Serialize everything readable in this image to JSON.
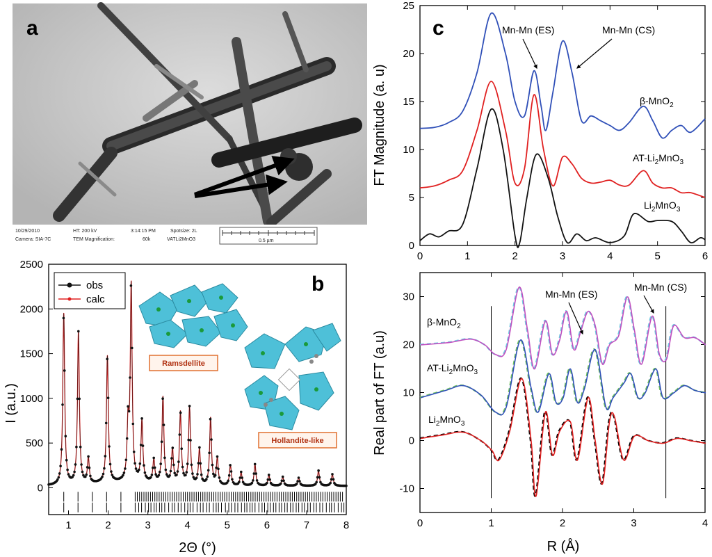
{
  "panel_a": {
    "label": "a",
    "info": {
      "date": "10/29/2010",
      "camera": "Camera: SIA-7C",
      "ht": "HT: 200 kV",
      "mode": "TEM Magnification:",
      "time": "3:14:15 PM",
      "mag": "60k",
      "spot": "Spotsize: 2L",
      "file": "VATLi2MnO3",
      "scale": "0.5 µm"
    }
  },
  "chart_data": [
    {
      "id": "b",
      "type": "line",
      "panel_label": "b",
      "xlabel": "2Θ (°)",
      "ylabel": "I (a.u.)",
      "xlim": [
        0.5,
        8
      ],
      "ylim": [
        -300,
        2500
      ],
      "xticks": [
        "1",
        "2",
        "3",
        "4",
        "5",
        "6",
        "7",
        "8"
      ],
      "yticks": [
        "0",
        "500",
        "1000",
        "1500",
        "2000",
        "2500"
      ],
      "legend": [
        "obs",
        "calc"
      ],
      "colors": {
        "obs": "#111111",
        "calc": "#e02020"
      },
      "baseline": 20,
      "peaks": [
        [
          0.88,
          1920
        ],
        [
          1.25,
          1700
        ],
        [
          1.5,
          280
        ],
        [
          1.98,
          1420
        ],
        [
          2.5,
          600
        ],
        [
          2.58,
          2180
        ],
        [
          2.85,
          680
        ],
        [
          3.15,
          250
        ],
        [
          3.38,
          960
        ],
        [
          3.62,
          380
        ],
        [
          3.82,
          800
        ],
        [
          4.05,
          860
        ],
        [
          4.3,
          400
        ],
        [
          4.58,
          750
        ],
        [
          4.75,
          300
        ],
        [
          5.08,
          230
        ],
        [
          5.35,
          150
        ],
        [
          5.7,
          240
        ],
        [
          6.05,
          120
        ],
        [
          6.4,
          100
        ],
        [
          6.8,
          90
        ],
        [
          7.3,
          170
        ],
        [
          7.65,
          130
        ]
      ],
      "structures": [
        "Ramsdellite",
        "Hollandite-like"
      ]
    },
    {
      "id": "c_top",
      "type": "line",
      "panel_label": "c",
      "xlabel": "",
      "ylabel": "FT Magnitude (a. u)",
      "xlim": [
        0,
        6
      ],
      "ylim": [
        0,
        25
      ],
      "xticks": [
        "0",
        "1",
        "2",
        "3",
        "4",
        "5",
        "6"
      ],
      "yticks": [
        "0",
        "5",
        "10",
        "15",
        "20",
        "25"
      ],
      "series": [
        {
          "name": "β-MnO2",
          "color": "#3050b8",
          "x": [
            0,
            0.3,
            0.6,
            0.9,
            1.2,
            1.5,
            1.8,
            2.0,
            2.2,
            2.4,
            2.55,
            2.65,
            2.8,
            3.0,
            3.2,
            3.4,
            3.6,
            3.8,
            4.0,
            4.2,
            4.4,
            4.7,
            4.9,
            5.1,
            5.3,
            5.5,
            5.7,
            6.0
          ],
          "values": [
            12.2,
            12.3,
            12.8,
            14.0,
            18.0,
            24.2,
            20.0,
            15.0,
            13.5,
            18.2,
            14.5,
            12.0,
            16.0,
            21.3,
            18.0,
            13.0,
            13.5,
            13.0,
            12.5,
            12.0,
            12.8,
            14.5,
            13.0,
            11.2,
            12.0,
            12.5,
            11.8,
            13.2
          ]
        },
        {
          "name": "AT-Li2MnO3",
          "color": "#e02020",
          "x": [
            0,
            0.3,
            0.6,
            0.9,
            1.2,
            1.5,
            1.8,
            2.0,
            2.2,
            2.4,
            2.6,
            2.8,
            3.0,
            3.2,
            3.4,
            3.6,
            3.8,
            4.0,
            4.2,
            4.4,
            4.7,
            4.9,
            5.1,
            5.3,
            5.5,
            5.7,
            6.0
          ],
          "values": [
            6.0,
            6.2,
            6.8,
            7.8,
            12.0,
            17.1,
            12.0,
            6.5,
            8.0,
            15.7,
            10.0,
            6.2,
            9.2,
            8.5,
            7.0,
            6.5,
            6.6,
            6.8,
            6.3,
            6.3,
            7.8,
            6.5,
            6.0,
            6.0,
            5.5,
            5.5,
            5.0
          ]
        },
        {
          "name": "Li2MnO3",
          "color": "#111111",
          "x": [
            0,
            0.2,
            0.4,
            0.6,
            0.9,
            1.2,
            1.5,
            1.75,
            2.0,
            2.1,
            2.25,
            2.45,
            2.7,
            2.9,
            3.1,
            3.3,
            3.5,
            3.7,
            4.0,
            4.3,
            4.5,
            4.8,
            5.0,
            5.3,
            5.5,
            5.7,
            5.9,
            6.0
          ],
          "values": [
            0.5,
            1.2,
            0.9,
            1.5,
            2.2,
            8.0,
            14.2,
            10.0,
            1.0,
            0.3,
            5.0,
            9.5,
            7.0,
            3.0,
            0.3,
            1.2,
            0.5,
            0.8,
            0.3,
            1.0,
            3.3,
            2.5,
            2.6,
            2.5,
            1.5,
            0.3,
            0.8,
            0.6
          ]
        }
      ],
      "annotations": [
        "Mn-Mn (ES)",
        "Mn-Mn (CS)"
      ],
      "labels": {
        "s1": "β-MnO",
        "s1sub": "2",
        "s2a": "AT-Li",
        "s2sub": "2",
        "s2b": "MnO",
        "s2sub2": "3",
        "s3a": "Li",
        "s3sub": "2",
        "s3b": "MnO",
        "s3sub2": "3"
      }
    },
    {
      "id": "c_bottom",
      "type": "line",
      "xlabel": "R (Å)",
      "ylabel": "Real part of FT (a.u)",
      "xlim": [
        0,
        4
      ],
      "ylim": [
        -15,
        35
      ],
      "xticks": [
        "0",
        "1",
        "2",
        "3",
        "4"
      ],
      "yticks": [
        "-10",
        "0",
        "10",
        "20",
        "30"
      ],
      "window": [
        1.0,
        3.45
      ],
      "offsets": {
        "beta": 20,
        "at": 10,
        "li": 0
      },
      "series": [
        {
          "name": "β-MnO2",
          "color": "#c050c0",
          "fit_color": "#70c8e0",
          "x": [
            0,
            0.4,
            0.7,
            0.9,
            1.05,
            1.2,
            1.38,
            1.5,
            1.6,
            1.75,
            1.85,
            1.95,
            2.05,
            2.15,
            2.25,
            2.35,
            2.45,
            2.55,
            2.65,
            2.78,
            2.9,
            3.0,
            3.1,
            3.25,
            3.35,
            3.45,
            3.55,
            3.7,
            3.85,
            4.0
          ],
          "values": [
            0,
            0.5,
            1.2,
            0,
            -2,
            -1,
            12,
            3,
            -5,
            5,
            -2,
            1,
            7,
            -1,
            3,
            7,
            4,
            -4,
            0,
            2,
            10,
            3,
            -4,
            6,
            -2,
            -3,
            4,
            1.5,
            1.5,
            0
          ]
        },
        {
          "name": "AT-Li2MnO3",
          "color": "#3050b8",
          "fit_color": "#70c060",
          "x": [
            0,
            0.35,
            0.6,
            0.85,
            1.05,
            1.2,
            1.4,
            1.55,
            1.65,
            1.8,
            1.9,
            2.0,
            2.1,
            2.2,
            2.3,
            2.45,
            2.6,
            2.7,
            2.85,
            2.95,
            3.05,
            3.15,
            3.3,
            3.4,
            3.55,
            3.7,
            3.85,
            4.0
          ],
          "values": [
            -1,
            0.5,
            1.5,
            -0.5,
            -4,
            -3,
            11,
            1,
            -4,
            4,
            -2,
            -1,
            5,
            -2,
            1,
            9,
            -3,
            -1,
            2,
            4,
            -1,
            0,
            5,
            -1,
            0,
            1.5,
            0.5,
            0
          ]
        },
        {
          "name": "Li2MnO3",
          "color": "#e02020",
          "fit_color": "#000000",
          "x": [
            0,
            0.3,
            0.6,
            0.85,
            1.0,
            1.1,
            1.25,
            1.42,
            1.55,
            1.62,
            1.75,
            1.85,
            1.95,
            2.1,
            2.2,
            2.35,
            2.45,
            2.55,
            2.65,
            2.72,
            2.85,
            3.0,
            3.2,
            3.4,
            3.6,
            3.8,
            4.0
          ],
          "values": [
            0.5,
            1.2,
            1.8,
            0,
            -2,
            -4,
            2,
            13,
            0,
            -11.5,
            6,
            -3,
            2,
            4,
            -4,
            9,
            0,
            -9,
            4,
            5,
            -4,
            1,
            0,
            -0.5,
            0.5,
            0,
            -0.5
          ]
        }
      ],
      "annotations": [
        "Mn-Mn (ES)",
        "Mn-Mn (CS)"
      ],
      "labels": {
        "s1": "β-MnO",
        "s1sub": "2",
        "s2a": "AT-Li",
        "s2sub": "2",
        "s2b": "MnO",
        "s2sub2": "3",
        "s3a": "Li",
        "s3sub": "2",
        "s3b": "MnO",
        "s3sub2": "3"
      }
    }
  ]
}
